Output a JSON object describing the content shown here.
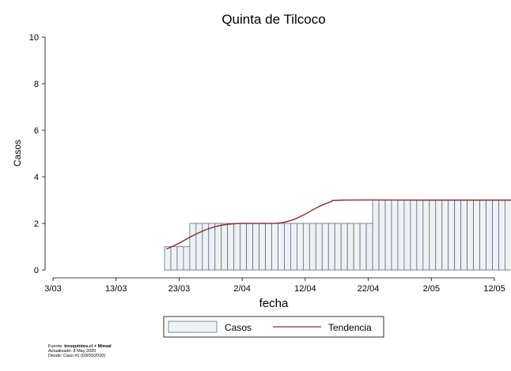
{
  "chart_data": {
    "type": "bar",
    "title": "Quinta de Tilcoco",
    "xlabel": "fecha",
    "ylabel": "Casos",
    "ylim": [
      0,
      10
    ],
    "yticks": [
      0,
      2,
      4,
      6,
      8,
      10
    ],
    "xlim": [
      "2020-03-03",
      "2020-05-12"
    ],
    "xticks": [
      "3/03",
      "13/03",
      "23/03",
      "2/04",
      "12/04",
      "22/04",
      "2/05",
      "12/05"
    ],
    "colors": {
      "bar_fill": "#eef2f3",
      "bar_stroke": "#5d6e8c",
      "trend": "#8b2b32"
    },
    "series": [
      {
        "name": "Casos",
        "kind": "bar",
        "start_date": "2020-03-21",
        "values": [
          1,
          1,
          1,
          1,
          2,
          2,
          2,
          2,
          2,
          2,
          2,
          2,
          2,
          2,
          2,
          2,
          2,
          2,
          2,
          2,
          2,
          2,
          2,
          2,
          2,
          2,
          2,
          2,
          2,
          2,
          2,
          2,
          2,
          3,
          3,
          3,
          3,
          3,
          3,
          3,
          3,
          3,
          3,
          3,
          3,
          3,
          3,
          3,
          3,
          3,
          3,
          3,
          3,
          3,
          3,
          3,
          3,
          3,
          3,
          3,
          3,
          3,
          3,
          3,
          3,
          3
        ]
      },
      {
        "name": "Tendencia",
        "kind": "line",
        "points": [
          [
            "2020-03-21",
            0.9
          ],
          [
            "2020-03-23",
            1.15
          ],
          [
            "2020-03-25",
            1.45
          ],
          [
            "2020-03-27",
            1.7
          ],
          [
            "2020-03-29",
            1.88
          ],
          [
            "2020-03-31",
            1.97
          ],
          [
            "2020-04-02",
            2.0
          ],
          [
            "2020-04-05",
            2.0
          ],
          [
            "2020-04-08",
            2.02
          ],
          [
            "2020-04-10",
            2.15
          ],
          [
            "2020-04-12",
            2.4
          ],
          [
            "2020-04-14",
            2.7
          ],
          [
            "2020-04-16",
            2.92
          ],
          [
            "2020-04-18",
            3.0
          ],
          [
            "2020-05-03",
            3.0
          ],
          [
            "2020-05-16",
            3.0
          ]
        ]
      }
    ],
    "legend": {
      "position": "bottom",
      "items": [
        "Casos",
        "Tendencia"
      ]
    }
  },
  "source": {
    "fuente_label": "Fuente: ",
    "fuente_value": "tresquintos.cl + Minsal",
    "actualizado": "Actualizado: 8 May 2020",
    "desde": "Desde: Caso #1  (03/03/2020)"
  }
}
